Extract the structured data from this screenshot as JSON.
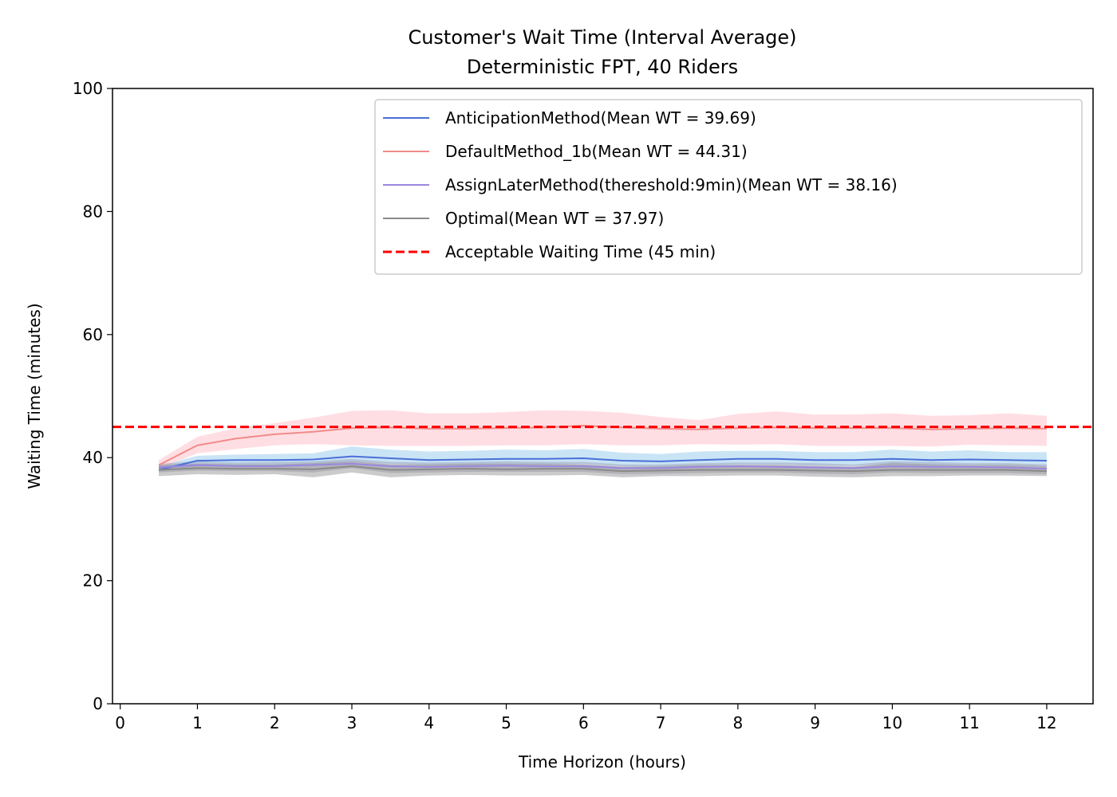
{
  "chart_data": {
    "type": "line",
    "title": "Customer's Wait Time (Interval Average)",
    "subtitle": "Deterministic FPT, 40 Riders",
    "xlabel": "Time Horizon (hours)",
    "ylabel": "Waiting Time (minutes)",
    "xlim": [
      -0.1,
      12.6
    ],
    "ylim": [
      0,
      100
    ],
    "xticks": [
      0,
      1,
      2,
      3,
      4,
      5,
      6,
      7,
      8,
      9,
      10,
      11,
      12
    ],
    "yticks": [
      0,
      20,
      40,
      60,
      80,
      100
    ],
    "grid": false,
    "legend_position": "top-right",
    "x": [
      0.5,
      1,
      1.5,
      2,
      2.5,
      3,
      3.5,
      4,
      4.5,
      5,
      5.5,
      6,
      6.5,
      7,
      7.5,
      8,
      8.5,
      9,
      9.5,
      10,
      10.5,
      11,
      11.5,
      12
    ],
    "series": [
      {
        "name": "AnticipationMethod(Mean WT = 39.69)",
        "color": "#4a6fd8",
        "band_color": "#87c3e8",
        "values": [
          38.0,
          39.5,
          39.6,
          39.6,
          39.7,
          40.2,
          39.9,
          39.6,
          39.7,
          39.8,
          39.8,
          39.9,
          39.5,
          39.4,
          39.6,
          39.8,
          39.8,
          39.6,
          39.6,
          39.8,
          39.6,
          39.7,
          39.6,
          39.5
        ],
        "lower": [
          37.8,
          38.6,
          38.7,
          38.7,
          38.9,
          39.3,
          39.0,
          38.8,
          38.8,
          38.9,
          38.9,
          39.0,
          38.6,
          38.5,
          38.7,
          38.9,
          38.9,
          38.7,
          38.7,
          38.9,
          38.7,
          38.8,
          38.7,
          38.6
        ],
        "upper": [
          38.6,
          40.3,
          40.5,
          40.6,
          40.7,
          41.8,
          41.3,
          41.0,
          41.1,
          41.3,
          41.2,
          41.4,
          40.8,
          40.6,
          41.0,
          41.1,
          41.1,
          40.9,
          40.9,
          41.3,
          41.0,
          41.2,
          40.9,
          40.9
        ]
      },
      {
        "name": "DefaultMethod_1b(Mean WT = 44.31)",
        "color": "#f08b8b",
        "band_color": "#ffb6c1",
        "values": [
          38.8,
          42.0,
          43.1,
          43.8,
          44.2,
          44.8,
          44.9,
          44.7,
          44.7,
          44.8,
          44.9,
          45.2,
          44.9,
          44.7,
          44.6,
          44.8,
          44.9,
          44.8,
          44.8,
          44.8,
          44.6,
          44.7,
          44.8,
          44.7
        ],
        "lower": [
          38.2,
          40.7,
          41.4,
          42.0,
          42.2,
          42.0,
          41.9,
          41.9,
          41.9,
          42.0,
          42.0,
          42.2,
          42.0,
          42.0,
          42.2,
          42.1,
          42.2,
          41.9,
          41.9,
          41.9,
          41.8,
          42.1,
          42.0,
          41.9
        ],
        "upper": [
          39.6,
          43.4,
          44.8,
          45.6,
          46.5,
          47.6,
          47.7,
          47.2,
          47.2,
          47.4,
          47.7,
          47.6,
          47.3,
          46.6,
          46.1,
          47.1,
          47.5,
          47.0,
          47.0,
          47.2,
          46.8,
          46.9,
          47.2,
          46.8
        ]
      },
      {
        "name": "AssignLaterMethod(thereshold:9min)(Mean WT = 38.16)",
        "color": "#9b87e0",
        "band_color": "#9a98b4",
        "values": [
          38.4,
          38.8,
          38.6,
          38.6,
          38.8,
          39.0,
          38.6,
          38.5,
          38.6,
          38.7,
          38.6,
          38.6,
          38.3,
          38.3,
          38.5,
          38.6,
          38.5,
          38.4,
          38.3,
          38.6,
          38.5,
          38.5,
          38.4,
          38.2
        ],
        "lower": [
          37.6,
          37.9,
          37.8,
          37.8,
          37.6,
          38.3,
          37.5,
          37.6,
          37.7,
          37.7,
          37.7,
          37.7,
          37.3,
          37.4,
          37.5,
          37.6,
          37.6,
          37.4,
          37.3,
          37.6,
          37.5,
          37.5,
          37.5,
          37.3
        ],
        "upper": [
          39.0,
          39.4,
          39.2,
          39.3,
          39.4,
          39.8,
          39.3,
          39.2,
          39.3,
          39.4,
          39.3,
          39.3,
          38.9,
          38.9,
          39.1,
          39.2,
          39.2,
          39.1,
          38.9,
          39.4,
          39.3,
          39.1,
          39.1,
          38.9
        ]
      },
      {
        "name": "Optimal(Mean WT = 37.97)",
        "color": "#8a8a8a",
        "band_color": "#8c8c8c",
        "values": [
          38.0,
          38.3,
          38.2,
          38.2,
          38.1,
          38.6,
          38.0,
          38.1,
          38.2,
          38.1,
          38.2,
          38.2,
          37.8,
          37.9,
          38.0,
          38.0,
          38.0,
          37.9,
          37.8,
          38.0,
          38.0,
          38.0,
          38.0,
          37.8
        ],
        "lower": [
          37.0,
          37.3,
          37.2,
          37.3,
          36.8,
          37.6,
          36.8,
          37.1,
          37.2,
          37.1,
          37.1,
          37.2,
          36.8,
          37.0,
          37.0,
          37.1,
          37.1,
          36.9,
          36.8,
          37.0,
          37.0,
          37.1,
          37.1,
          37.0
        ],
        "upper": [
          38.8,
          39.0,
          38.9,
          38.9,
          39.1,
          39.4,
          38.9,
          38.9,
          39.0,
          39.0,
          39.0,
          38.9,
          38.5,
          38.6,
          38.8,
          38.8,
          38.8,
          38.6,
          38.5,
          39.1,
          38.9,
          38.8,
          38.8,
          38.6
        ]
      }
    ],
    "reference_line": {
      "name": "Acceptable Waiting Time (45 min)",
      "y": 45,
      "color": "#ff0000",
      "style": "dashed"
    }
  }
}
